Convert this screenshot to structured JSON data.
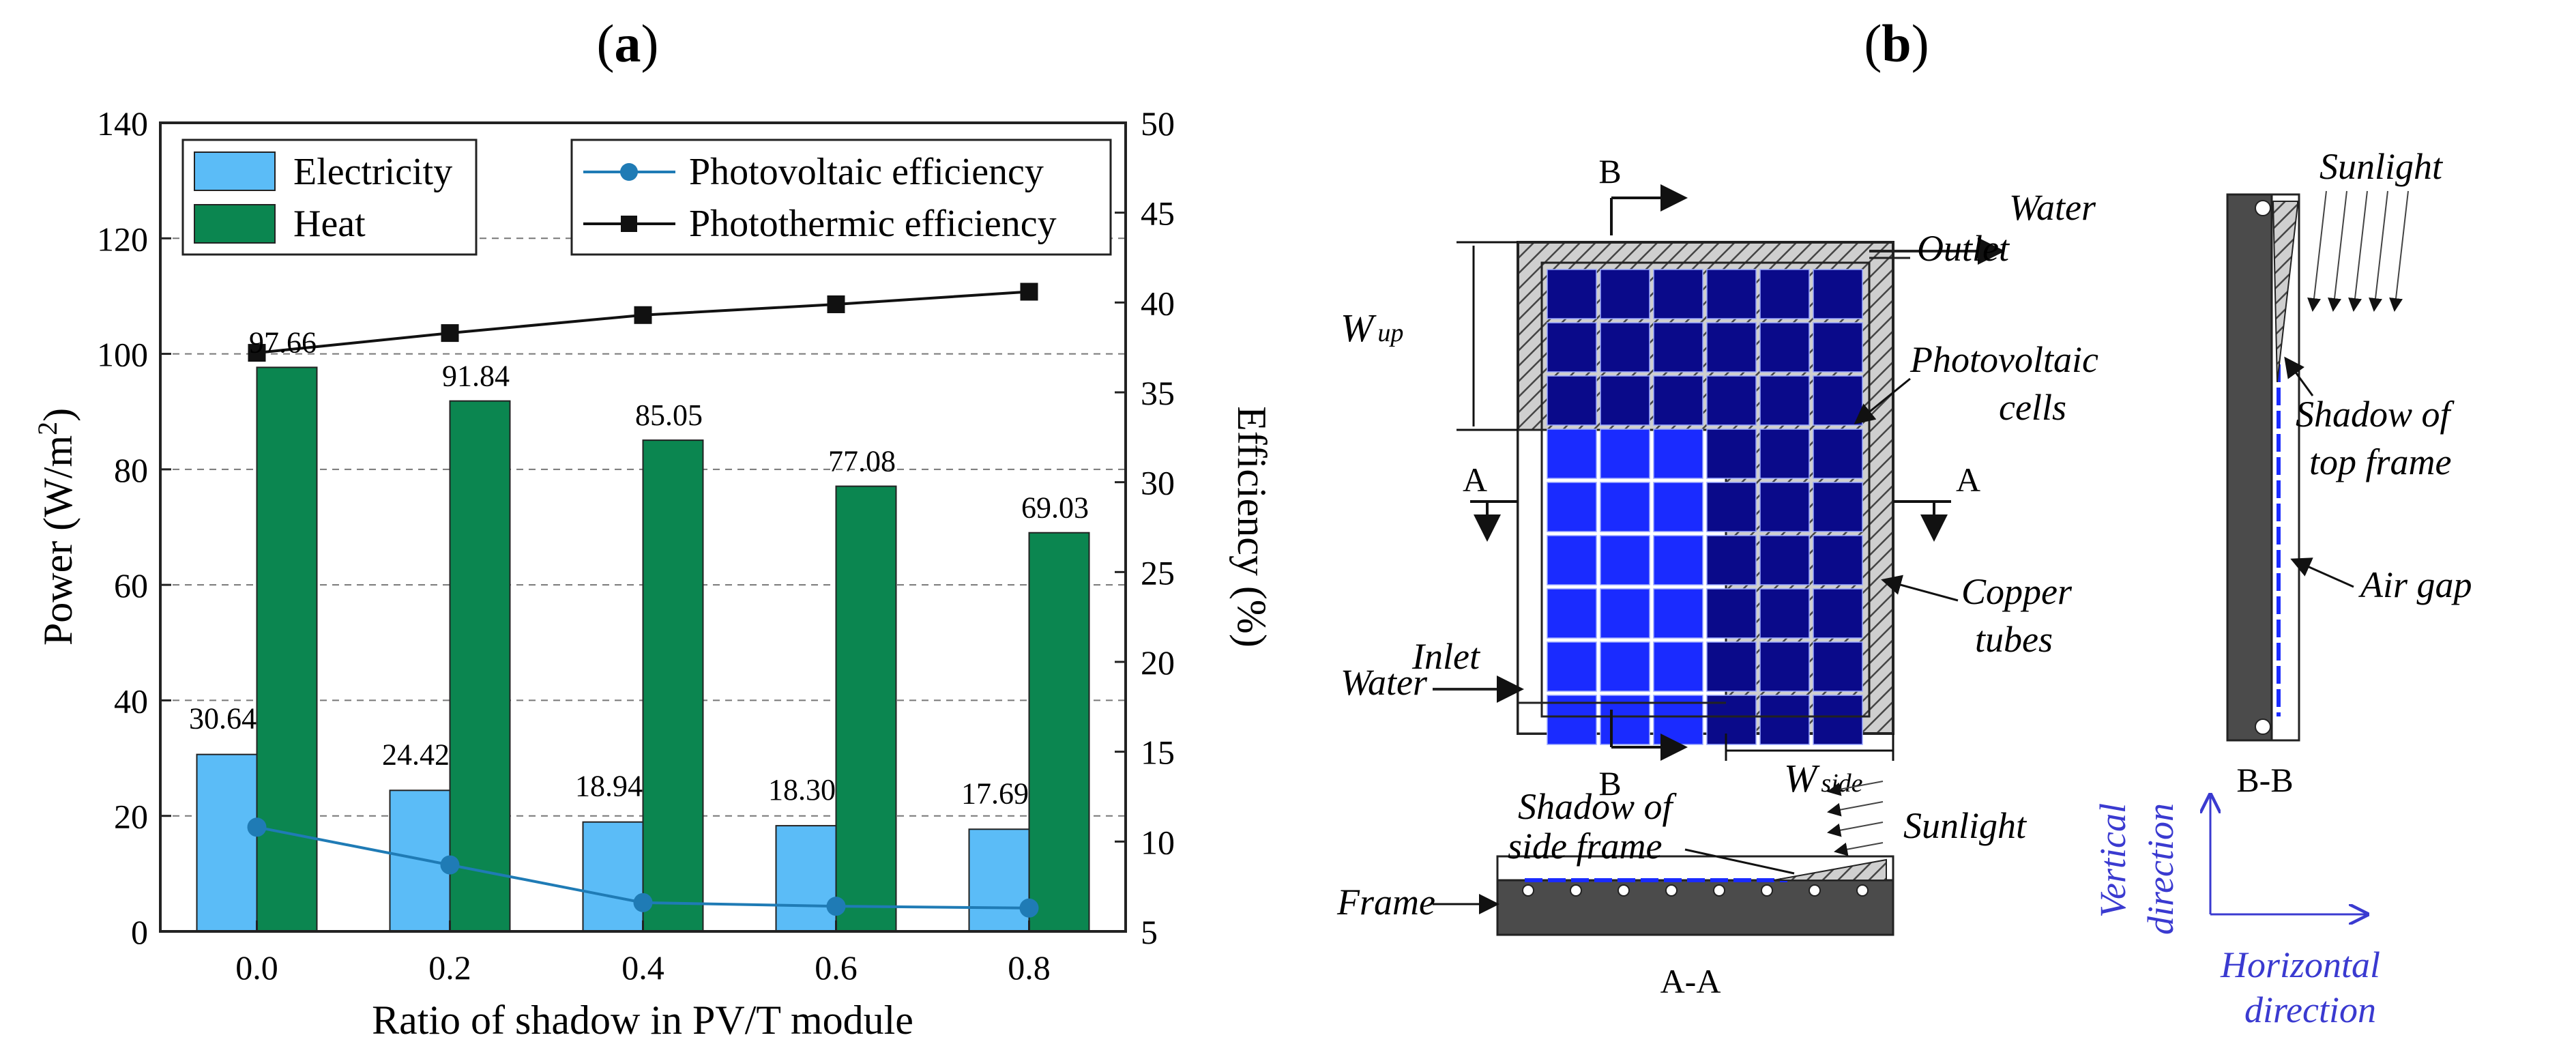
{
  "panels": {
    "a": {
      "label_open": "(",
      "label_letter": "a",
      "label_close": ")"
    },
    "b": {
      "label_open": "(",
      "label_letter": "b",
      "label_close": ")"
    }
  },
  "chart_data": {
    "type": "bar",
    "title": "",
    "categories": [
      "0.0",
      "0.2",
      "0.4",
      "0.6",
      "0.8"
    ],
    "xlabel": "Ratio of shadow in PV/T module",
    "ylabel": "Power (W/m",
    "ylabel_sup": "2",
    "ylabel_close": ")",
    "y2label": "Efficiency (%)",
    "ylim": [
      0,
      140
    ],
    "y2lim": [
      5,
      50
    ],
    "yticks": [
      "0",
      "20",
      "40",
      "60",
      "80",
      "100",
      "120",
      "140"
    ],
    "y2ticks": [
      "5",
      "10",
      "15",
      "20",
      "25",
      "30",
      "35",
      "40",
      "45",
      "50"
    ],
    "grid": "dashed horizontal",
    "series": [
      {
        "name": "Electricity",
        "kind": "bar",
        "axis": "left",
        "color": "#5bbcf7",
        "values": [
          30.64,
          24.42,
          18.94,
          18.3,
          17.69
        ],
        "labels": [
          "30.64",
          "24.42",
          "18.94",
          "18.30",
          "17.69"
        ]
      },
      {
        "name": "Heat",
        "kind": "bar",
        "axis": "left",
        "color": "#0b8650",
        "values": [
          97.66,
          91.84,
          85.05,
          77.08,
          69.03
        ],
        "labels": [
          "97.66",
          "91.84",
          "85.05",
          "77.08",
          "69.03"
        ]
      },
      {
        "name": "Photovoltaic efficiency",
        "kind": "line",
        "axis": "right",
        "color": "#1f7bb5",
        "marker": "circle",
        "values": [
          10.8,
          8.7,
          6.6,
          6.4,
          6.3
        ]
      },
      {
        "name": "Photothermic efficiency",
        "kind": "line",
        "axis": "right",
        "color": "#111111",
        "marker": "square",
        "values": [
          37.2,
          38.3,
          39.3,
          39.9,
          40.6
        ]
      }
    ],
    "legend": "top-left (bars), top-right (lines)"
  },
  "diagram": {
    "section_marker_b": "B",
    "section_marker_a": "A",
    "water_outlet_1": "Water",
    "water_outlet_2": "Outlet",
    "water_inlet_1": "Water",
    "water_inlet_2": "Inlet",
    "w_up_main": "W",
    "w_up_sub": "up",
    "w_side_main": "W",
    "w_side_sub": "side",
    "pv_cells_1": "Photovoltaic",
    "pv_cells_2": "cells",
    "copper_1": "Copper",
    "copper_2": "tubes",
    "frame": "Frame",
    "shadow_side_1": "Shadow of",
    "shadow_side_2": "side frame",
    "sunlight": "Sunlight",
    "section_aa": "A-A",
    "section_bb": "B-B",
    "shadow_top_1": "Shadow of",
    "shadow_top_2": "top frame",
    "air_gap": "Air gap",
    "vertical_1": "Vertical",
    "vertical_2": "direction",
    "horizontal_1": "Horizontal",
    "horizontal_2": "direction",
    "colors": {
      "cell_blue": "#1a2bff",
      "cell_dark": "#0a0a8a",
      "frame_gray": "#555555",
      "axis_blue": "#3a3ad0"
    }
  }
}
